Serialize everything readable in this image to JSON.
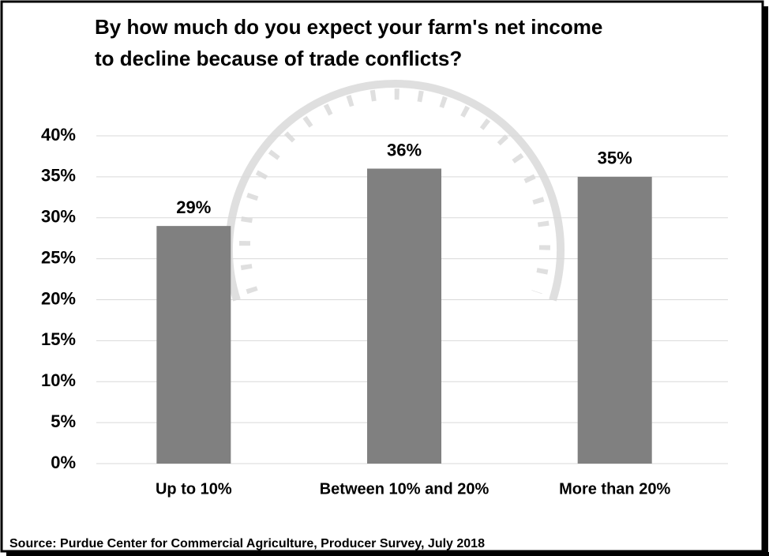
{
  "chart_data": {
    "type": "bar",
    "title": "By how much do you expect your farm's net income to decline because of trade conflicts?",
    "categories": [
      "Up to 10%",
      "Between 10% and 20%",
      "More than 20%"
    ],
    "values": [
      29,
      36,
      35
    ],
    "value_labels": [
      "29%",
      "36%",
      "35%"
    ],
    "color": "#808080",
    "ylim": [
      0,
      40
    ],
    "yticks": [
      {
        "value": 0,
        "label": "0%"
      },
      {
        "value": 5,
        "label": "5%"
      },
      {
        "value": 10,
        "label": "10%"
      },
      {
        "value": 15,
        "label": "15%"
      },
      {
        "value": 20,
        "label": "20%"
      },
      {
        "value": 25,
        "label": "25%"
      },
      {
        "value": 30,
        "label": "30%"
      },
      {
        "value": 35,
        "label": "35%"
      },
      {
        "value": 40,
        "label": "40%"
      }
    ],
    "grid": true,
    "source": "Source: Purdue Center for Commercial Agriculture, Producer Survey, July 2018"
  }
}
